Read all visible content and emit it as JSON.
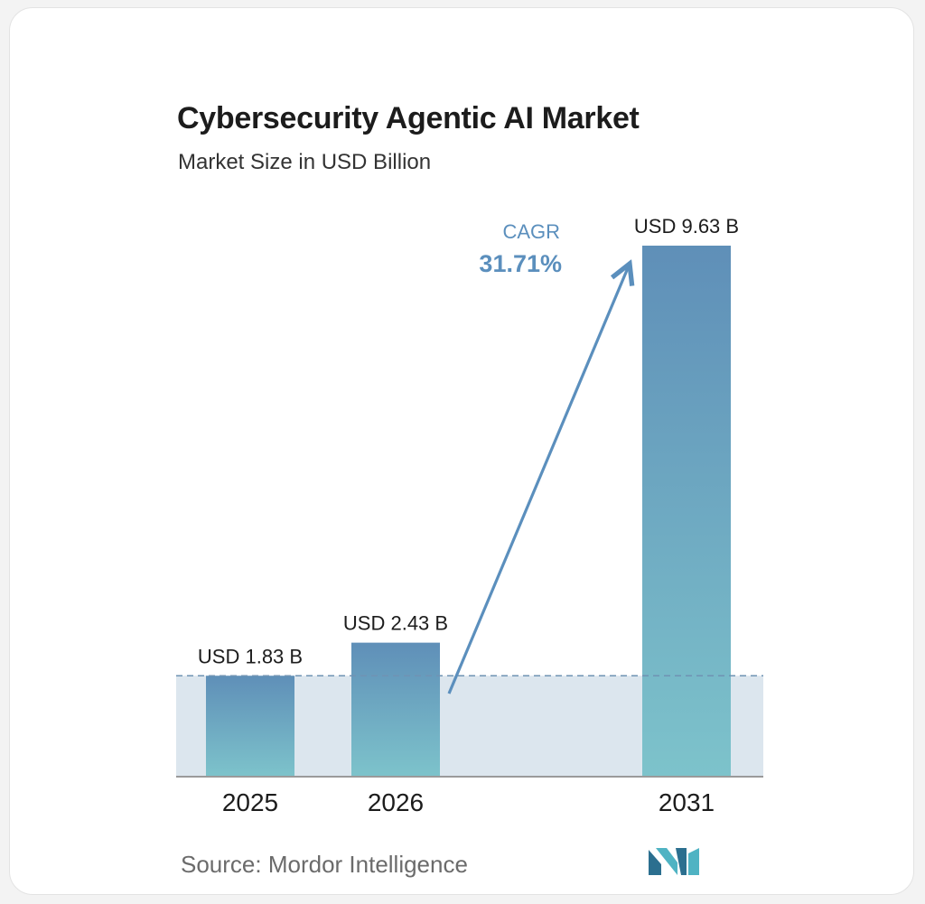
{
  "chart_data": {
    "type": "bar",
    "title": "Cybersecurity Agentic AI Market",
    "subtitle": "Market Size in USD Billion",
    "categories": [
      "2025",
      "2026",
      "2031"
    ],
    "values": [
      1.83,
      2.43,
      9.63
    ],
    "value_labels": [
      "USD 1.83 B",
      "USD 2.43 B",
      "USD 9.63 B"
    ],
    "ylim": [
      0,
      10.5
    ],
    "grid": false,
    "annotation": {
      "label": "CAGR",
      "value": "31.71%"
    },
    "colors": {
      "bar_top": "#5f8fb8",
      "bar_bottom": "#7dc3cb",
      "baseline_band": "#dce6ee",
      "dashed_line": "#6f93b3",
      "arrow": "#5b8fbd",
      "axis": "#9a9a9a"
    }
  },
  "footer": {
    "source": "Source: Mordor Intelligence",
    "logo_icon": "mordor-intelligence-logo-icon",
    "logo_colors": [
      "#2b6f8f",
      "#4fb3c3"
    ]
  }
}
